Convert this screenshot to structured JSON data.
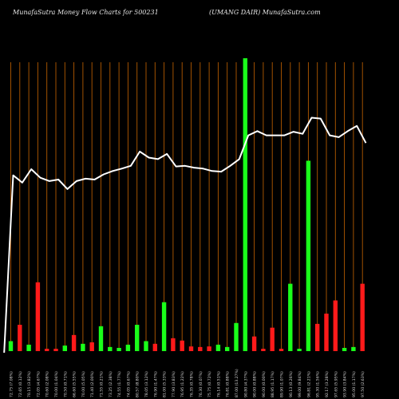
{
  "header": {
    "left": "MunafaSutra  Money Flow  Charts for 500231",
    "right": "(UMANG DAIR) MunafaSutra.com"
  },
  "colors": {
    "background": "#000000",
    "gridline": "#b35a00",
    "line": "#ffffff",
    "bar_up": "#1aff1a",
    "bar_down": "#ff1a1a"
  },
  "chart_data": {
    "type": "bar",
    "bar_ylim": [
      0,
      100
    ],
    "line_ylim": [
      0,
      100
    ],
    "bars": [
      {
        "value": 3.4,
        "dir": "up"
      },
      {
        "value": 9.0,
        "dir": "down"
      },
      {
        "value": 2.2,
        "dir": "up"
      },
      {
        "value": 23.5,
        "dir": "down"
      },
      {
        "value": 0.8,
        "dir": "down"
      },
      {
        "value": 0.8,
        "dir": "down"
      },
      {
        "value": 1.9,
        "dir": "up"
      },
      {
        "value": 5.5,
        "dir": "down"
      },
      {
        "value": 2.5,
        "dir": "up"
      },
      {
        "value": 3.0,
        "dir": "down"
      },
      {
        "value": 8.5,
        "dir": "up"
      },
      {
        "value": 1.4,
        "dir": "up"
      },
      {
        "value": 1.1,
        "dir": "up"
      },
      {
        "value": 2.2,
        "dir": "up"
      },
      {
        "value": 9.0,
        "dir": "up"
      },
      {
        "value": 3.4,
        "dir": "up"
      },
      {
        "value": 2.5,
        "dir": "down"
      },
      {
        "value": 16.7,
        "dir": "up"
      },
      {
        "value": 4.4,
        "dir": "down"
      },
      {
        "value": 3.6,
        "dir": "down"
      },
      {
        "value": 1.6,
        "dir": "down"
      },
      {
        "value": 1.4,
        "dir": "down"
      },
      {
        "value": 1.6,
        "dir": "down"
      },
      {
        "value": 2.2,
        "dir": "up"
      },
      {
        "value": 1.4,
        "dir": "up"
      },
      {
        "value": 9.6,
        "dir": "up"
      },
      {
        "value": 100,
        "dir": "up"
      },
      {
        "value": 5.0,
        "dir": "down"
      },
      {
        "value": 0.8,
        "dir": "down"
      },
      {
        "value": 8.0,
        "dir": "down"
      },
      {
        "value": 0.8,
        "dir": "down"
      },
      {
        "value": 23.0,
        "dir": "up"
      },
      {
        "value": 0.8,
        "dir": "up"
      },
      {
        "value": 65.0,
        "dir": "up"
      },
      {
        "value": 9.3,
        "dir": "down"
      },
      {
        "value": 12.8,
        "dir": "down"
      },
      {
        "value": 17.3,
        "dir": "down"
      },
      {
        "value": 1.1,
        "dir": "up"
      },
      {
        "value": 1.4,
        "dir": "up"
      },
      {
        "value": 23.0,
        "dir": "down"
      }
    ],
    "line": [
      0,
      58.2,
      55.8,
      60.2,
      57.4,
      56.3,
      56.8,
      53.7,
      56.3,
      57.1,
      56.8,
      58.5,
      59.6,
      60.4,
      61.3,
      66.0,
      64.0,
      63.5,
      65.2,
      61.1,
      61.3,
      60.7,
      60.4,
      59.6,
      59.4,
      61.3,
      63.5,
      71.3,
      72.7,
      71.3,
      71.3,
      71.3,
      72.5,
      71.8,
      77.1,
      76.8,
      71.3,
      70.7,
      72.7,
      74.4,
      68.8
    ],
    "x_labels": [
      "72.75 (7.08%)",
      "72.65 (0.12%)",
      "70.15 (3.82%)",
      "72.05 (4.67%)",
      "70.60 (2.08%)",
      "70.00 (1.04%)",
      "70.50 (0.71%)",
      "66.60 (5.55%)",
      "70.00 (5.05%)",
      "71.40 (2.00%)",
      "71.55 (0.21%)",
      "73.25 (2.38%)",
      "74.55 (1.77%)",
      "74.05 (0.67%)",
      "80.57 (8.80%)",
      "78.05 (3.12%)",
      "76.90 (1.47%)",
      "81.00 (5.33%)",
      "77.90 (3.83%)",
      "76.95 (1.22%)",
      "76.35 (0.78%)",
      "76.30 (0.07%)",
      "75.75 (0.72%)",
      "76.14 (0.51%)",
      "76.81 (0.88%)",
      "87.00 (13.27%)",
      "90.80 (4.37%)",
      "90.00 (0.88%)",
      "90.00 (0.00%)",
      "88.95 (1.17%)",
      "89.90 (1.07%)",
      "90.13 (0.26%)",
      "99.00 (9.84%)",
      "96.81 (2.21%)",
      "95.30 (1.56%)",
      "92.17 (3.28%)",
      "97.65 (5.95%)",
      "93.90 (3.84%)",
      "95.00 (1.17%)",
      "97.50 (2.63%)"
    ]
  }
}
